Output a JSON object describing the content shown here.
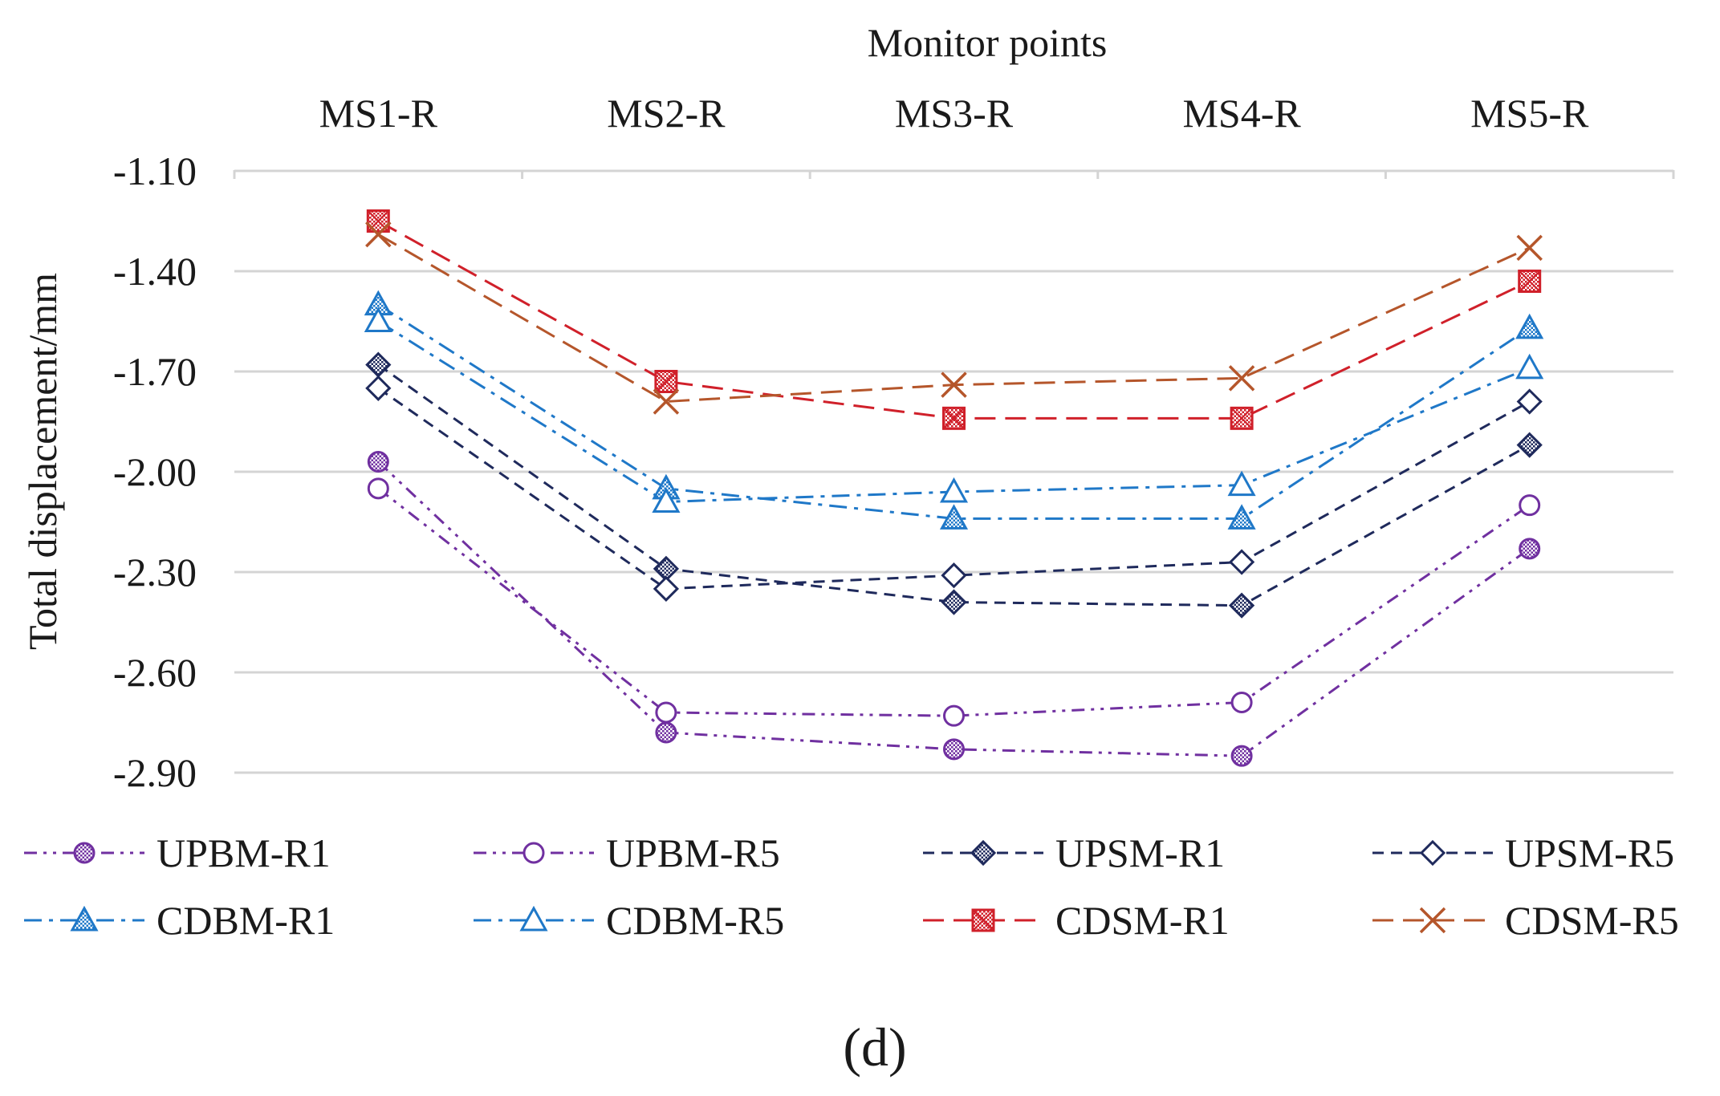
{
  "chart_data": {
    "type": "line",
    "top_axis_title": "Monitor points",
    "ylabel": "Total displacement/mm",
    "caption": "(d)",
    "categories": [
      "MS1-R",
      "MS2-R",
      "MS3-R",
      "MS4-R",
      "MS5-R"
    ],
    "yticks": [
      "-1.10",
      "-1.40",
      "-1.70",
      "-2.00",
      "-2.30",
      "-2.60",
      "-2.90"
    ],
    "ylim": [
      -2.9,
      -1.1
    ],
    "y_reversed": false,
    "x_axis_position": "top",
    "grid": true,
    "legend_position": "bottom",
    "series": [
      {
        "name": "UPBM-R1",
        "values": [
          -1.97,
          -2.78,
          -2.83,
          -2.85,
          -2.23
        ],
        "color": "#7030a0",
        "dash": "dashdotdot",
        "marker": "circle-hatched"
      },
      {
        "name": "UPBM-R5",
        "values": [
          -2.05,
          -2.72,
          -2.73,
          -2.69,
          -2.1
        ],
        "color": "#7030a0",
        "dash": "dashdotdot",
        "marker": "circle-open"
      },
      {
        "name": "UPSM-R1",
        "values": [
          -1.68,
          -2.29,
          -2.39,
          -2.4,
          -1.92
        ],
        "color": "#1f2a5c",
        "dash": "dash",
        "marker": "diamond-hatched"
      },
      {
        "name": "UPSM-R5",
        "values": [
          -1.75,
          -2.35,
          -2.31,
          -2.27,
          -1.79
        ],
        "color": "#1f2a5c",
        "dash": "dash",
        "marker": "diamond-open"
      },
      {
        "name": "CDBM-R1",
        "values": [
          -1.5,
          -2.05,
          -2.14,
          -2.14,
          -1.57
        ],
        "color": "#1f78c8",
        "dash": "dashdot",
        "marker": "triangle-hatched"
      },
      {
        "name": "CDBM-R5",
        "values": [
          -1.55,
          -2.09,
          -2.06,
          -2.04,
          -1.69
        ],
        "color": "#1f78c8",
        "dash": "dashdot",
        "marker": "triangle-open"
      },
      {
        "name": "CDSM-R1",
        "values": [
          -1.25,
          -1.73,
          -1.84,
          -1.84,
          -1.43
        ],
        "color": "#d0202a",
        "dash": "longdash",
        "marker": "square-hatched"
      },
      {
        "name": "CDSM-R5",
        "values": [
          -1.29,
          -1.79,
          -1.74,
          -1.72,
          -1.33
        ],
        "color": "#b5562b",
        "dash": "longdash",
        "marker": "x"
      }
    ]
  }
}
